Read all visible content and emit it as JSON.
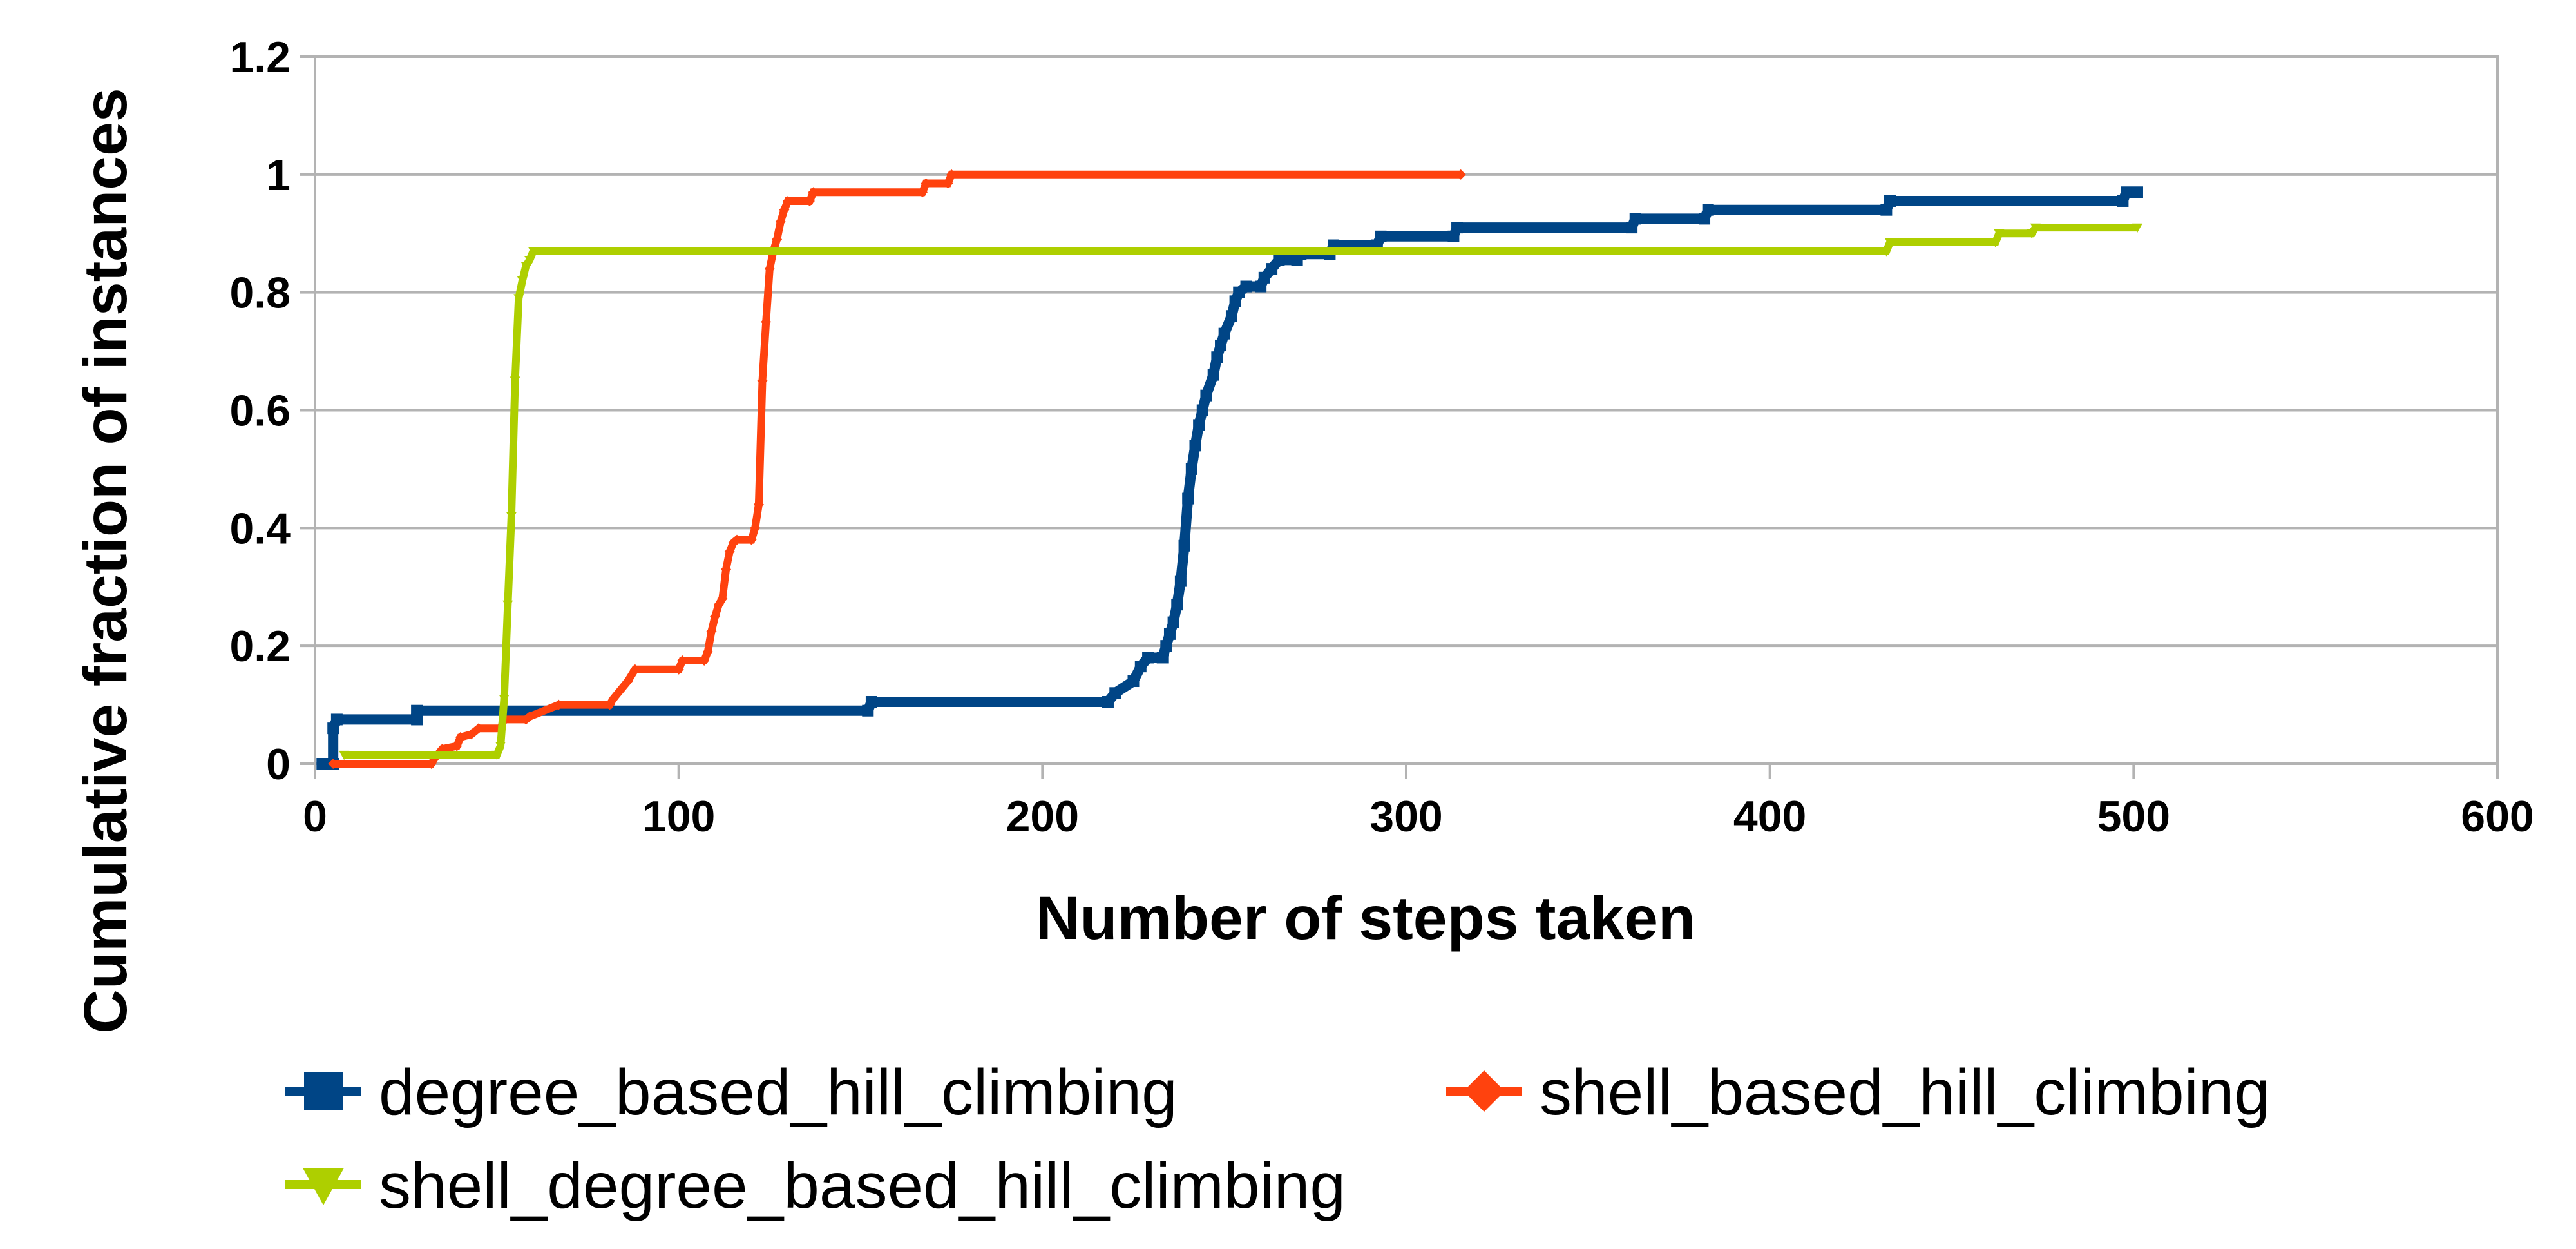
{
  "chart_data": {
    "type": "line",
    "title": "",
    "xlabel": "Number of steps taken",
    "ylabel": "Cumulative fraction of instances",
    "xlim": [
      0,
      600
    ],
    "ylim": [
      0,
      1.2
    ],
    "x_ticks": [
      0,
      100,
      200,
      300,
      400,
      500,
      600
    ],
    "y_ticks": [
      0,
      0.2,
      0.4,
      0.6,
      0.8,
      1,
      1.2
    ],
    "x_tick_labels": [
      "0",
      "100",
      "200",
      "300",
      "400",
      "500",
      "600"
    ],
    "y_tick_labels": [
      "0",
      "0.2",
      "0.4",
      "0.6",
      "0.8",
      "1",
      "1.2"
    ],
    "grid": "horizontal",
    "legend_position": "bottom",
    "series": [
      {
        "name": "degree_based_hill_climbing",
        "color": "#004586",
        "marker": "square",
        "points": [
          [
            2,
            0
          ],
          [
            5,
            0
          ],
          [
            5,
            0.06
          ],
          [
            6,
            0.075
          ],
          [
            28,
            0.075
          ],
          [
            28,
            0.09
          ],
          [
            152,
            0.09
          ],
          [
            153,
            0.105
          ],
          [
            218,
            0.105
          ],
          [
            220,
            0.12
          ],
          [
            225,
            0.14
          ],
          [
            227,
            0.165
          ],
          [
            229,
            0.18
          ],
          [
            233,
            0.18
          ],
          [
            234,
            0.2
          ],
          [
            235,
            0.22
          ],
          [
            236,
            0.24
          ],
          [
            237,
            0.27
          ],
          [
            238,
            0.31
          ],
          [
            239,
            0.37
          ],
          [
            240,
            0.45
          ],
          [
            241,
            0.5
          ],
          [
            242,
            0.54
          ],
          [
            243,
            0.575
          ],
          [
            244,
            0.6
          ],
          [
            245,
            0.625
          ],
          [
            247,
            0.66
          ],
          [
            248,
            0.69
          ],
          [
            249,
            0.71
          ],
          [
            250,
            0.73
          ],
          [
            252,
            0.76
          ],
          [
            253,
            0.785
          ],
          [
            254,
            0.8
          ],
          [
            256,
            0.81
          ],
          [
            260,
            0.81
          ],
          [
            261,
            0.825
          ],
          [
            263,
            0.84
          ],
          [
            265,
            0.855
          ],
          [
            270,
            0.855
          ],
          [
            271,
            0.865
          ],
          [
            279,
            0.865
          ],
          [
            280,
            0.88
          ],
          [
            292,
            0.88
          ],
          [
            293,
            0.895
          ],
          [
            313,
            0.895
          ],
          [
            314,
            0.91
          ],
          [
            362,
            0.91
          ],
          [
            363,
            0.925
          ],
          [
            382,
            0.925
          ],
          [
            383,
            0.94
          ],
          [
            432,
            0.94
          ],
          [
            433,
            0.955
          ],
          [
            497,
            0.955
          ],
          [
            498,
            0.97
          ],
          [
            501,
            0.97
          ]
        ]
      },
      {
        "name": "shell_based_hill_climbing",
        "color": "#ff420e",
        "marker": "diamond",
        "points": [
          [
            5,
            0
          ],
          [
            32,
            0
          ],
          [
            33,
            0.01
          ],
          [
            35,
            0.025
          ],
          [
            39,
            0.03
          ],
          [
            40,
            0.045
          ],
          [
            43,
            0.05
          ],
          [
            45,
            0.06
          ],
          [
            51,
            0.06
          ],
          [
            52,
            0.075
          ],
          [
            58,
            0.075
          ],
          [
            59,
            0.08
          ],
          [
            67,
            0.1
          ],
          [
            81,
            0.1
          ],
          [
            82,
            0.11
          ],
          [
            84,
            0.125
          ],
          [
            86,
            0.14
          ],
          [
            88,
            0.16
          ],
          [
            100,
            0.16
          ],
          [
            101,
            0.175
          ],
          [
            107,
            0.175
          ],
          [
            108,
            0.19
          ],
          [
            109,
            0.225
          ],
          [
            110,
            0.25
          ],
          [
            111,
            0.27
          ],
          [
            112,
            0.28
          ],
          [
            113,
            0.33
          ],
          [
            114,
            0.36
          ],
          [
            115,
            0.375
          ],
          [
            116,
            0.38
          ],
          [
            120,
            0.38
          ],
          [
            121,
            0.4
          ],
          [
            122,
            0.44
          ],
          [
            123,
            0.65
          ],
          [
            124,
            0.75
          ],
          [
            125,
            0.84
          ],
          [
            126,
            0.87
          ],
          [
            127,
            0.89
          ],
          [
            128,
            0.92
          ],
          [
            129,
            0.94
          ],
          [
            130,
            0.955
          ],
          [
            136,
            0.955
          ],
          [
            137,
            0.97
          ],
          [
            167,
            0.97
          ],
          [
            168,
            0.985
          ],
          [
            174,
            0.985
          ],
          [
            175,
            1.0
          ],
          [
            315,
            1.0
          ]
        ]
      },
      {
        "name": "shell_degree_based_hill_climbing",
        "color": "#aecf00",
        "marker": "triangle-down",
        "points": [
          [
            8,
            0.015
          ],
          [
            50,
            0.015
          ],
          [
            51,
            0.03
          ],
          [
            52,
            0.11
          ],
          [
            53,
            0.27
          ],
          [
            54,
            0.42
          ],
          [
            55,
            0.65
          ],
          [
            56,
            0.79
          ],
          [
            57,
            0.82
          ],
          [
            58,
            0.845
          ],
          [
            59,
            0.855
          ],
          [
            60,
            0.87
          ],
          [
            432,
            0.87
          ],
          [
            433,
            0.885
          ],
          [
            462,
            0.885
          ],
          [
            463,
            0.9
          ],
          [
            472,
            0.9
          ],
          [
            473,
            0.91
          ],
          [
            501,
            0.91
          ]
        ]
      }
    ]
  }
}
